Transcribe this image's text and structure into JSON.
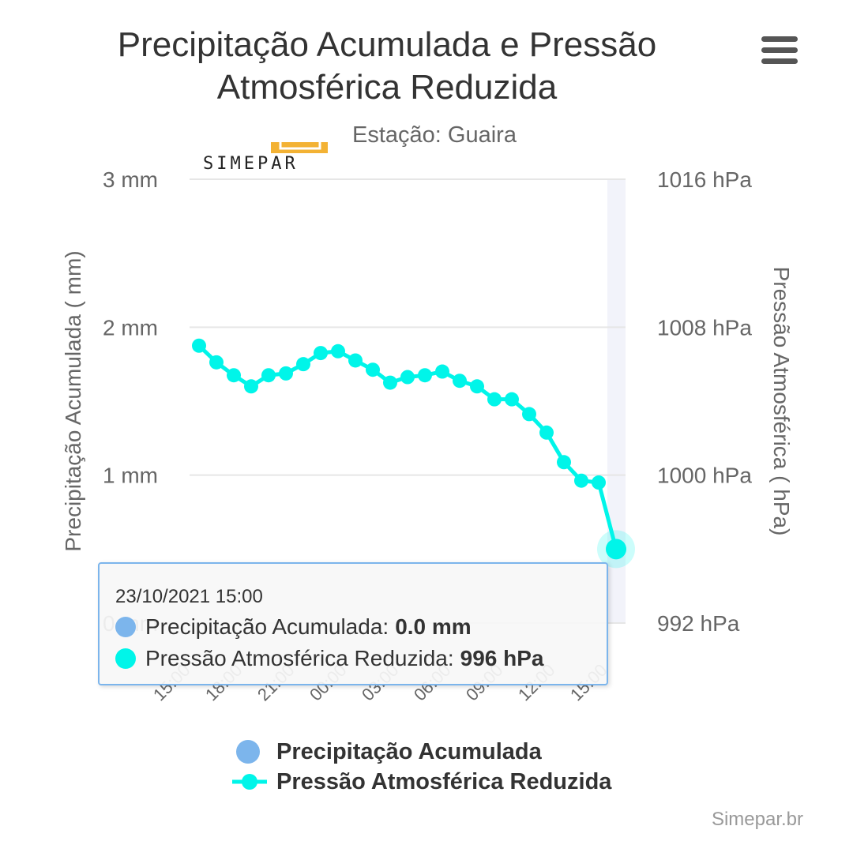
{
  "header": {
    "title_line1": "Precipitação Acumulada e Pressão",
    "title_line2": "Atmosférica Reduzida",
    "subtitle": "Estação: Guaira",
    "logo_text": "SIMEPAR",
    "menu_icon": "hamburger-menu-icon"
  },
  "colors": {
    "precip": "#7cb5ec",
    "pressure": "#00f5e9",
    "grid": "#e6e6e6",
    "band": "#f2f3fa"
  },
  "chart_data": {
    "type": "line",
    "title": "Precipitação Acumulada e Pressão Atmosférica Reduzida",
    "subtitle": "Estação: Guaira",
    "y_left": {
      "label": "Precipitação Acumulada ( mm)",
      "min": 0,
      "max": 3,
      "ticks": [
        "0 mm",
        "1 mm",
        "2 mm",
        "3 mm"
      ]
    },
    "y_right": {
      "label": "Pressão Atmosférica ( hPa)",
      "min": 992,
      "max": 1016,
      "ticks": [
        "992 hPa",
        "1000 hPa",
        "1008 hPa",
        "1016 hPa"
      ]
    },
    "x_ticks": [
      "15:00",
      "18:00",
      "21:00",
      "00:00",
      "03:00",
      "06:00",
      "09:00",
      "12:00",
      "15:00"
    ],
    "grid": true,
    "legend_position": "bottom",
    "series": [
      {
        "name": "Precipitação Acumulada",
        "axis": "left",
        "values": [
          0,
          0,
          0,
          0,
          0,
          0,
          0,
          0,
          0,
          0,
          0,
          0,
          0,
          0,
          0,
          0,
          0,
          0,
          0,
          0,
          0,
          0,
          0,
          0,
          0
        ]
      },
      {
        "name": "Pressão Atmosférica Reduzida",
        "axis": "right",
        "values": [
          1007.0,
          1006.1,
          1005.4,
          1004.8,
          1005.4,
          1005.5,
          1006.0,
          1006.6,
          1006.7,
          1006.2,
          1005.7,
          1005.0,
          1005.3,
          1005.4,
          1005.6,
          1005.1,
          1004.8,
          1004.1,
          1004.1,
          1003.3,
          1002.3,
          1000.7,
          999.7,
          999.6,
          996.0
        ]
      }
    ]
  },
  "tooltip": {
    "date": "23/10/2021 15:00",
    "precip_label": "Precipitação Acumulada: ",
    "precip_value": "0.0 mm",
    "pressure_label": "Pressão Atmosférica Reduzida: ",
    "pressure_value": "996 hPa"
  },
  "legend": {
    "precip": "Precipitação Acumulada",
    "pressure": "Pressão Atmosférica Reduzida"
  },
  "credits": "Simepar.br"
}
